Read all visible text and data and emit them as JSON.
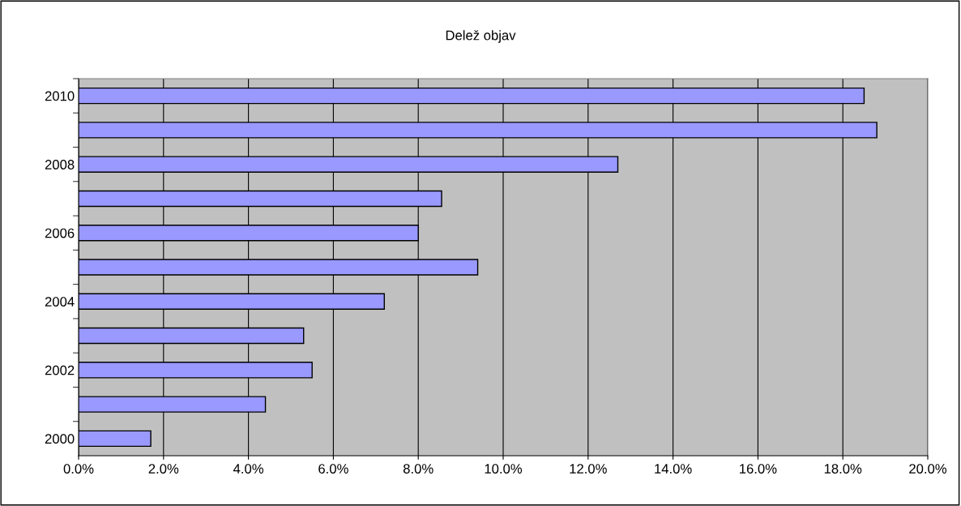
{
  "chart_data": {
    "type": "bar",
    "orientation": "horizontal",
    "title": "Delež objav",
    "categories": [
      "2010",
      null,
      "2008",
      null,
      "2006",
      null,
      "2004",
      null,
      "2002",
      null,
      "2000"
    ],
    "values": [
      18.5,
      18.8,
      12.7,
      8.55,
      8.0,
      9.4,
      7.2,
      5.3,
      5.5,
      4.4,
      1.7
    ],
    "color": "#9999ff",
    "xlim": [
      0,
      20
    ],
    "xticks": [
      {
        "value": 0,
        "label": "0.0%"
      },
      {
        "value": 2,
        "label": "2.0%"
      },
      {
        "value": 4,
        "label": "4.0%"
      },
      {
        "value": 6,
        "label": "6.0%"
      },
      {
        "value": 8,
        "label": "8.0%"
      },
      {
        "value": 10,
        "label": "10.0%"
      },
      {
        "value": 12,
        "label": "12.0%"
      },
      {
        "value": 14,
        "label": "14.0%"
      },
      {
        "value": 16,
        "label": "16.0%"
      },
      {
        "value": 18,
        "label": "18.0%"
      },
      {
        "value": 20,
        "label": "20.0%"
      }
    ],
    "grid": "x"
  }
}
